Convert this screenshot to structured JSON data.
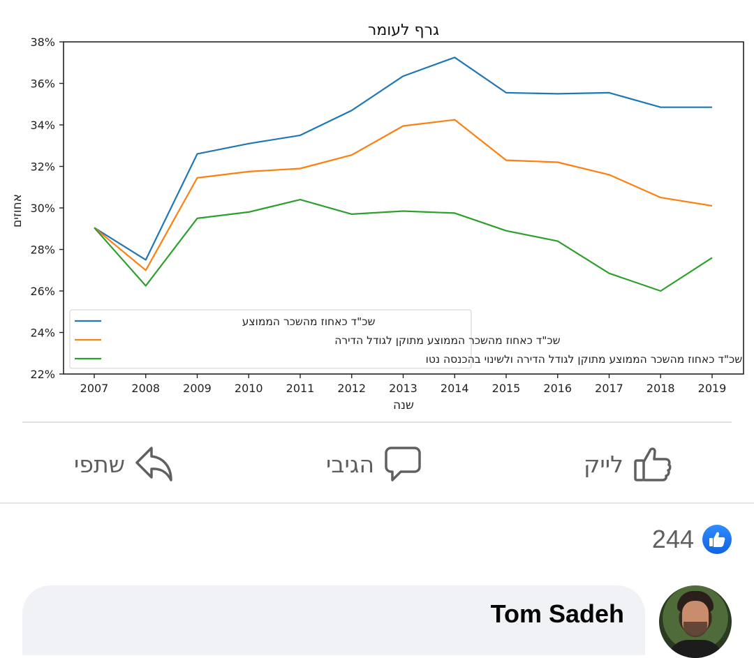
{
  "chart_data": {
    "type": "line",
    "title": "גרף לעומר",
    "xlabel": "שנה",
    "ylabel": "אחוזים",
    "x": [
      2007,
      2008,
      2009,
      2010,
      2011,
      2012,
      2013,
      2014,
      2015,
      2016,
      2017,
      2018,
      2019
    ],
    "x_tick_labels": [
      "2007",
      "2008",
      "2009",
      "2010",
      "2011",
      "2012",
      "2013",
      "2014",
      "2015",
      "2016",
      "2017",
      "2018",
      "2019"
    ],
    "ylim": [
      22,
      38
    ],
    "y_ticks": [
      22,
      24,
      26,
      28,
      30,
      32,
      34,
      36,
      38
    ],
    "y_tick_labels": [
      "22%",
      "24%",
      "26%",
      "28%",
      "30%",
      "32%",
      "34%",
      "36%",
      "38%"
    ],
    "grid": false,
    "legend_position": "lower-left",
    "series": [
      {
        "name": "שכ\"ד כאחוז מהשכר הממוצע",
        "color": "#1f77b4",
        "values": [
          29.05,
          27.5,
          32.6,
          33.1,
          33.5,
          34.7,
          36.35,
          37.25,
          35.55,
          35.5,
          35.55,
          34.85,
          34.85
        ]
      },
      {
        "name": "שכ\"ד כאחוז מהשכר הממוצע מתוקן לגודל הדירה",
        "color": "#ff7f0e",
        "values": [
          29.05,
          27.0,
          31.45,
          31.75,
          31.9,
          32.55,
          33.95,
          34.25,
          32.3,
          32.2,
          31.6,
          30.5,
          30.1
        ]
      },
      {
        "name": "שכ\"ד כאחוז מהשכר הממוצע מתוקן לגודל הדירה ולשינוי בהכנסה נטו",
        "color": "#2ca02c",
        "values": [
          29.05,
          26.25,
          29.5,
          29.8,
          30.4,
          29.7,
          29.85,
          29.75,
          28.9,
          28.4,
          26.85,
          26.0,
          27.6
        ]
      }
    ]
  },
  "actions": {
    "like_label": "לייק",
    "comment_label": "הגיבי",
    "share_label": "שתפי"
  },
  "reactions": {
    "count": "244",
    "icon": "like-icon",
    "color": "#1877f2"
  },
  "comment": {
    "author": "Tom Sadeh"
  }
}
